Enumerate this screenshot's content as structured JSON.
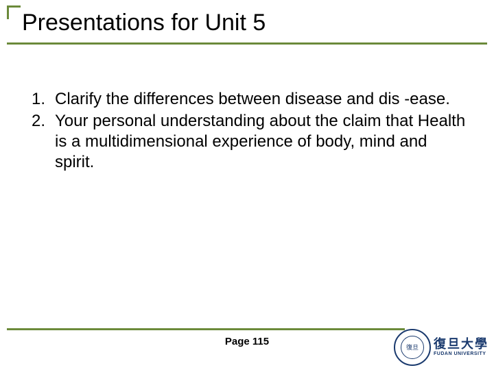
{
  "colors": {
    "accent": "#6b8a3a",
    "text": "#000000",
    "logo": "#1a3a6e",
    "background": "#ffffff"
  },
  "title": "Presentations for Unit 5",
  "list": [
    {
      "num": "1.",
      "text": " Clarify the differences between disease and dis -ease."
    },
    {
      "num": "2.",
      "text": " Your personal understanding about the claim that Health is a multidimensional experience of body, mind and spirit."
    }
  ],
  "page_label": "Page 115",
  "logo": {
    "seal_center": "復旦",
    "cn": "復旦大學",
    "en": "FUDAN UNIVERSITY"
  }
}
